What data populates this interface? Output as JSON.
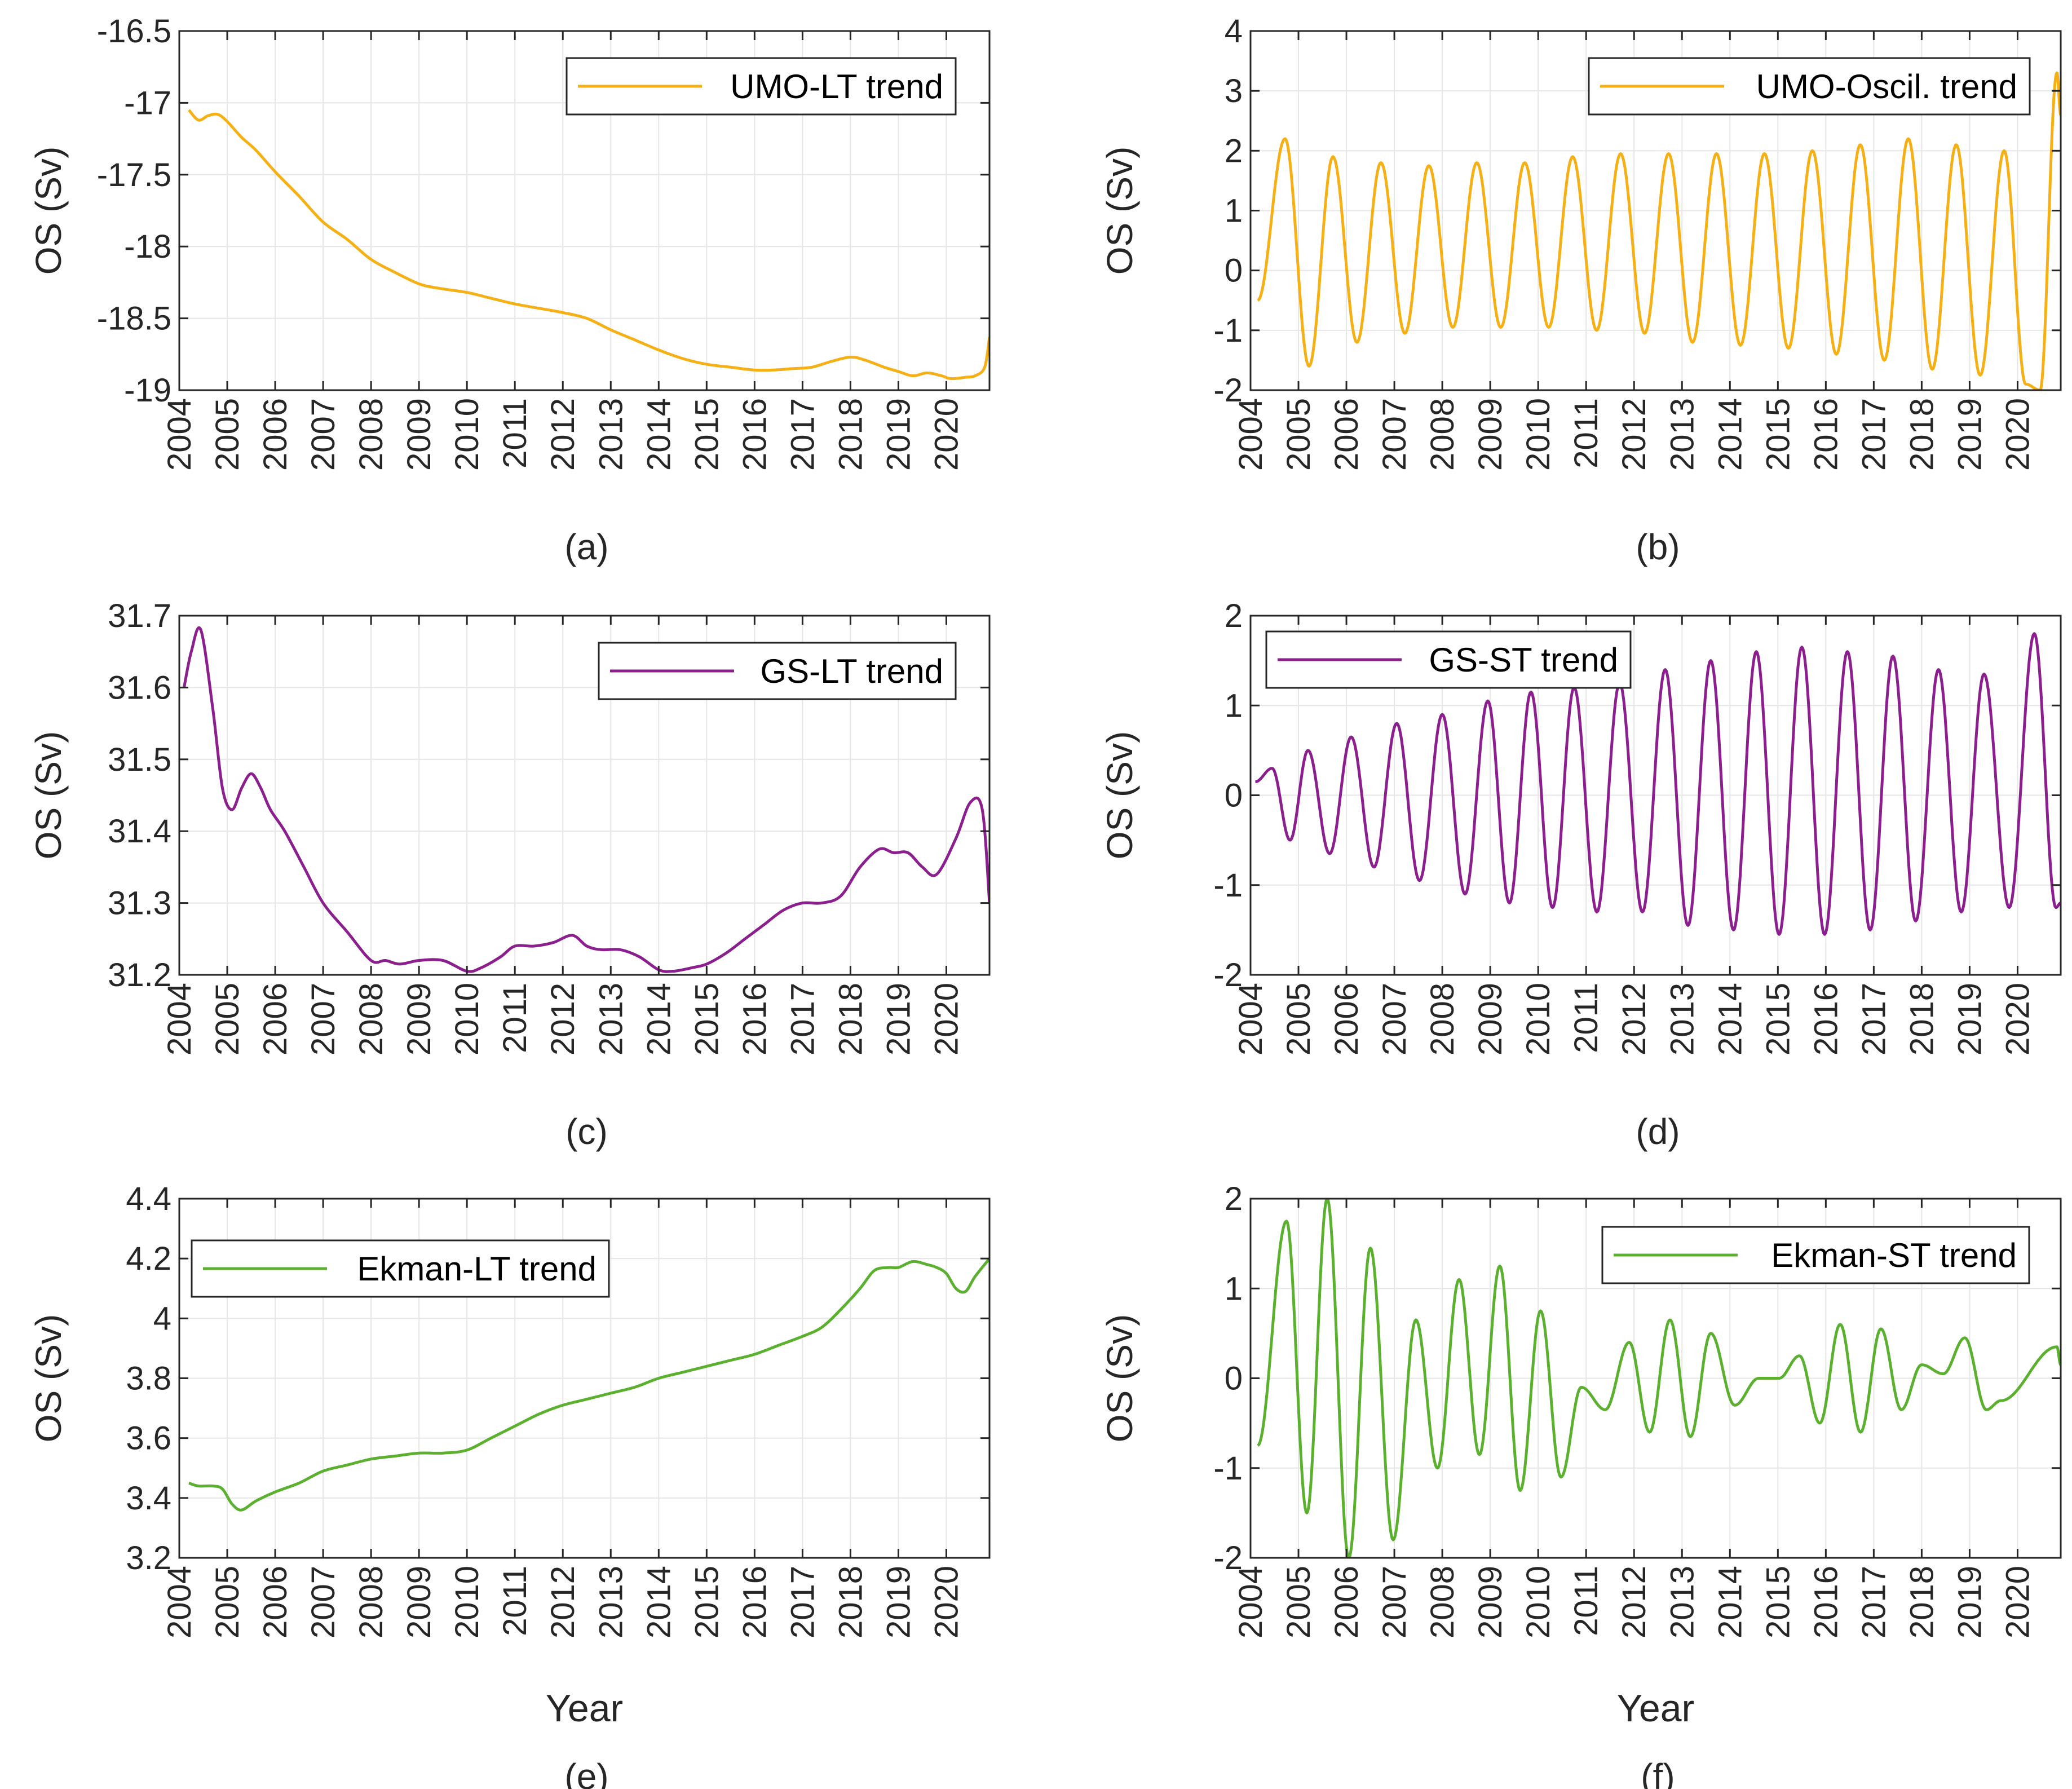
{
  "figure": {
    "shared_x_ticks": [
      "2004",
      "2005",
      "2006",
      "2007",
      "2008",
      "2009",
      "2010",
      "2011",
      "2012",
      "2013",
      "2014",
      "2015",
      "2016",
      "2017",
      "2018",
      "2019",
      "2020"
    ]
  },
  "chart_data": [
    {
      "id": "a",
      "type": "line",
      "caption": "(a)",
      "ylabel": "OS (Sv)",
      "xlabel": "",
      "legend": "UMO-LT trend",
      "legend_pos": "top-right",
      "color": "#F5B016",
      "xlim": [
        2004,
        2020.9
      ],
      "ylim": [
        -19,
        -16.5
      ],
      "yticks": [
        "-16.5",
        "-17",
        "-17.5",
        "-18",
        "-18.5",
        "-19"
      ],
      "ytick_values": [
        -16.5,
        -17,
        -17.5,
        -18,
        -18.5,
        -19
      ],
      "x": [
        2004.2,
        2004.4,
        2004.6,
        2004.8,
        2005.0,
        2005.3,
        2005.6,
        2006.0,
        2006.5,
        2007.0,
        2007.5,
        2008.0,
        2008.5,
        2009.0,
        2009.4,
        2010.0,
        2010.5,
        2011.0,
        2011.5,
        2012.0,
        2012.5,
        2013.0,
        2013.5,
        2014.0,
        2014.5,
        2015.0,
        2015.5,
        2016.0,
        2016.4,
        2016.8,
        2017.2,
        2017.6,
        2018.0,
        2018.3,
        2018.7,
        2019.0,
        2019.3,
        2019.6,
        2019.9,
        2020.1,
        2020.4,
        2020.6,
        2020.8,
        2020.9
      ],
      "values": [
        -17.05,
        -17.12,
        -17.09,
        -17.08,
        -17.13,
        -17.24,
        -17.33,
        -17.48,
        -17.65,
        -17.83,
        -17.95,
        -18.09,
        -18.18,
        -18.26,
        -18.29,
        -18.32,
        -18.36,
        -18.4,
        -18.43,
        -18.46,
        -18.5,
        -18.58,
        -18.65,
        -18.72,
        -18.78,
        -18.82,
        -18.84,
        -18.86,
        -18.86,
        -18.85,
        -18.84,
        -18.8,
        -18.77,
        -18.79,
        -18.84,
        -18.87,
        -18.9,
        -18.88,
        -18.9,
        -18.92,
        -18.91,
        -18.9,
        -18.84,
        -18.63
      ]
    },
    {
      "id": "b",
      "type": "line",
      "caption": "(b)",
      "ylabel": "OS (Sv)",
      "xlabel": "",
      "legend": "UMO-Oscil. trend",
      "legend_pos": "top-right",
      "color": "#F5B016",
      "xlim": [
        2004,
        2020.9
      ],
      "ylim": [
        -2,
        4
      ],
      "yticks": [
        "4",
        "3",
        "2",
        "1",
        "0",
        "-1",
        "-2"
      ],
      "ytick_values": [
        4,
        3,
        2,
        1,
        0,
        -1,
        -2
      ],
      "series_kind": "oscillation",
      "start": 2004.15,
      "end": 2020.9,
      "start_value": -0.5,
      "end_value": 2.6,
      "last_peak": 3.3,
      "last_trough": -2.0,
      "peak_years": [
        2004.72,
        2005.72,
        2006.72,
        2007.72,
        2008.72,
        2009.72,
        2010.72,
        2011.72,
        2012.72,
        2013.72,
        2014.72,
        2015.72,
        2016.72,
        2017.72,
        2018.72,
        2019.72
      ],
      "peak_values": [
        2.2,
        1.9,
        1.8,
        1.75,
        1.8,
        1.8,
        1.9,
        1.95,
        1.95,
        1.95,
        1.95,
        2.0,
        2.1,
        2.2,
        2.1,
        2.0
      ],
      "trough_values": [
        -1.6,
        -1.2,
        -1.05,
        -0.95,
        -0.95,
        -0.95,
        -1.0,
        -1.05,
        -1.2,
        -1.25,
        -1.3,
        -1.4,
        -1.5,
        -1.65,
        -1.75,
        -1.9
      ]
    },
    {
      "id": "c",
      "type": "line",
      "caption": "(c)",
      "ylabel": "OS (Sv)",
      "xlabel": "",
      "legend": "GS-LT trend",
      "legend_pos": "top-right",
      "color": "#8B1F8E",
      "xlim": [
        2004,
        2020.9
      ],
      "ylim": [
        31.2,
        31.7
      ],
      "yticks": [
        "31.7",
        "31.6",
        "31.5",
        "31.4",
        "31.3",
        "31.2"
      ],
      "ytick_values": [
        31.7,
        31.6,
        31.5,
        31.4,
        31.3,
        31.2
      ],
      "x": [
        2004.1,
        2004.25,
        2004.45,
        2004.7,
        2004.9,
        2005.1,
        2005.3,
        2005.5,
        2005.7,
        2005.9,
        2006.2,
        2006.6,
        2007.0,
        2007.5,
        2008.0,
        2008.3,
        2008.6,
        2009.0,
        2009.5,
        2010.0,
        2010.3,
        2010.7,
        2011.0,
        2011.4,
        2011.8,
        2012.2,
        2012.5,
        2012.8,
        2013.2,
        2013.6,
        2014.0,
        2014.3,
        2014.7,
        2015.0,
        2015.4,
        2015.8,
        2016.2,
        2016.6,
        2017.0,
        2017.4,
        2017.8,
        2018.2,
        2018.6,
        2018.9,
        2019.2,
        2019.5,
        2019.8,
        2020.2,
        2020.5,
        2020.75,
        2020.9
      ],
      "values": [
        31.6,
        31.65,
        31.68,
        31.57,
        31.46,
        31.43,
        31.46,
        31.48,
        31.46,
        31.43,
        31.4,
        31.35,
        31.3,
        31.26,
        31.22,
        31.22,
        31.215,
        31.22,
        31.22,
        31.205,
        31.21,
        31.225,
        31.24,
        31.24,
        31.245,
        31.255,
        31.24,
        31.235,
        31.235,
        31.225,
        31.207,
        31.205,
        31.21,
        31.215,
        31.23,
        31.25,
        31.27,
        31.29,
        31.3,
        31.3,
        31.31,
        31.35,
        31.375,
        31.37,
        31.37,
        31.35,
        31.34,
        31.39,
        31.44,
        31.43,
        31.3
      ]
    },
    {
      "id": "d",
      "type": "line",
      "caption": "(d)",
      "ylabel": "OS (Sv)",
      "xlabel": "",
      "legend": "GS-ST trend",
      "legend_pos": "top-left",
      "color": "#8B1F8E",
      "xlim": [
        2004,
        2020.9
      ],
      "ylim": [
        -2,
        2
      ],
      "yticks": [
        "2",
        "1",
        "0",
        "-1",
        "-2"
      ],
      "ytick_values": [
        2,
        1,
        0,
        -1,
        -2
      ],
      "series_kind": "oscillation",
      "start": 2004.1,
      "end": 2020.9,
      "start_value": 0.15,
      "end_value": -1.2,
      "last_peak": 1.8,
      "last_trough": -1.25,
      "peak_years": [
        2004.45,
        2005.2,
        2006.1,
        2007.05,
        2008.0,
        2008.95,
        2009.85,
        2010.75,
        2011.7,
        2012.65,
        2013.6,
        2014.55,
        2015.5,
        2016.45,
        2017.4,
        2018.35,
        2019.3,
        2020.35
      ],
      "peak_values": [
        0.3,
        0.5,
        0.65,
        0.8,
        0.9,
        1.05,
        1.15,
        1.2,
        1.25,
        1.4,
        1.5,
        1.6,
        1.65,
        1.6,
        1.55,
        1.4,
        1.35,
        1.8
      ],
      "trough_values": [
        -0.5,
        -0.65,
        -0.8,
        -0.95,
        -1.1,
        -1.2,
        -1.25,
        -1.3,
        -1.3,
        -1.45,
        -1.5,
        -1.55,
        -1.55,
        -1.5,
        -1.4,
        -1.3,
        -1.25,
        -1.25
      ]
    },
    {
      "id": "e",
      "type": "line",
      "caption": "(e)",
      "ylabel": "OS (Sv)",
      "xlabel": "Year",
      "legend": "Ekman-LT trend",
      "legend_pos": "top-left",
      "color": "#5BB12F",
      "xlim": [
        2004,
        2020.9
      ],
      "ylim": [
        3.2,
        4.4
      ],
      "yticks": [
        "4.4",
        "4.2",
        "4",
        "3.8",
        "3.6",
        "3.4",
        "3.2"
      ],
      "ytick_values": [
        4.4,
        4.2,
        4.0,
        3.8,
        3.6,
        3.4,
        3.2
      ],
      "x": [
        2004.2,
        2004.4,
        2004.7,
        2004.9,
        2005.1,
        2005.3,
        2005.6,
        2006.0,
        2006.5,
        2007.0,
        2007.5,
        2008.0,
        2008.5,
        2009.0,
        2009.5,
        2010.0,
        2010.5,
        2011.0,
        2011.5,
        2012.0,
        2012.5,
        2013.0,
        2013.5,
        2014.0,
        2014.5,
        2015.0,
        2015.5,
        2016.0,
        2016.5,
        2017.0,
        2017.4,
        2017.8,
        2018.2,
        2018.5,
        2018.8,
        2019.0,
        2019.3,
        2019.6,
        2019.8,
        2020.0,
        2020.2,
        2020.4,
        2020.6,
        2020.9
      ],
      "values": [
        3.45,
        3.44,
        3.44,
        3.43,
        3.38,
        3.36,
        3.39,
        3.42,
        3.45,
        3.49,
        3.51,
        3.53,
        3.54,
        3.55,
        3.55,
        3.56,
        3.6,
        3.64,
        3.68,
        3.71,
        3.73,
        3.75,
        3.77,
        3.8,
        3.82,
        3.84,
        3.86,
        3.88,
        3.91,
        3.94,
        3.97,
        4.03,
        4.1,
        4.16,
        4.17,
        4.17,
        4.19,
        4.18,
        4.17,
        4.15,
        4.1,
        4.09,
        4.14,
        4.2
      ]
    },
    {
      "id": "f",
      "type": "line",
      "caption": "(f)",
      "ylabel": "OS (Sv)",
      "xlabel": "Year",
      "legend": "Ekman-ST trend",
      "legend_pos": "top-right",
      "color": "#5BB12F",
      "xlim": [
        2004,
        2020.9
      ],
      "ylim": [
        -2,
        2
      ],
      "yticks": [
        "2",
        "1",
        "0",
        "-1",
        "-2"
      ],
      "ytick_values": [
        2,
        1,
        0,
        -1,
        -2
      ],
      "series_kind": "oscillation",
      "start": 2004.15,
      "end": 2020.9,
      "start_value": -0.75,
      "end_value": 0.15,
      "last_peak": 0.35,
      "last_trough": -0.25,
      "peak_years": [
        2004.75,
        2005.6,
        2006.5,
        2007.45,
        2008.35,
        2009.2,
        2010.05,
        2010.9,
        2011.9,
        2012.75,
        2013.6,
        2014.6,
        2015.45,
        2016.3,
        2017.15,
        2018.0,
        2018.9
      ],
      "peak_values": [
        1.75,
        2.0,
        1.45,
        0.65,
        1.1,
        1.25,
        0.75,
        -0.1,
        0.4,
        0.65,
        0.5,
        0.0,
        0.25,
        0.6,
        0.55,
        0.15,
        0.45
      ],
      "trough_values": [
        -1.5,
        -2.0,
        -1.8,
        -1.0,
        -0.85,
        -1.25,
        -1.1,
        -0.35,
        -0.6,
        -0.65,
        -0.3,
        0.0,
        -0.5,
        -0.6,
        -0.35,
        0.05,
        -0.35
      ]
    }
  ]
}
